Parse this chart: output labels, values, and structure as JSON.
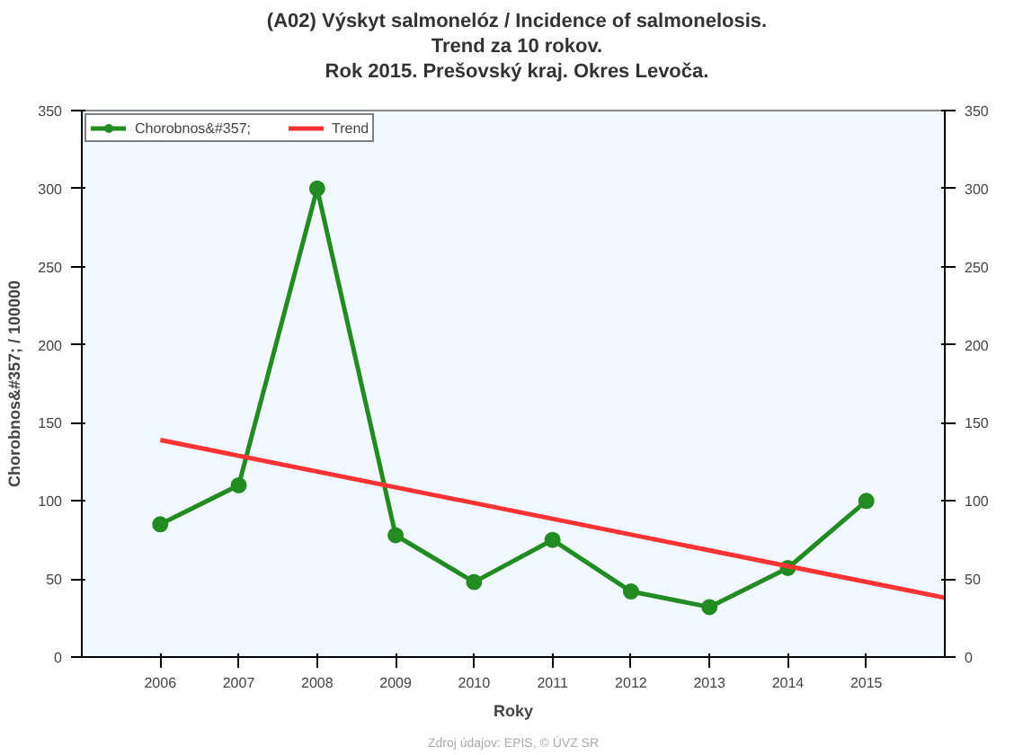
{
  "chart_data": {
    "type": "line",
    "title": "(A02) Výskyt salmonelóz / Incidence of salmonelosis.\nTrend za 10 rokov.\nRok 2015. Prešovský kraj. Okres Levoča.",
    "xlabel": "Roky",
    "ylabel": "Chorobnos&#357; / 100000",
    "x": [
      2006,
      2007,
      2008,
      2009,
      2010,
      2011,
      2012,
      2013,
      2014,
      2015
    ],
    "series": [
      {
        "name": "Chorobnos&#357;",
        "color": "#228b22",
        "marker": "circle",
        "values": [
          85,
          110,
          300,
          78,
          48,
          75,
          42,
          32,
          57,
          100
        ]
      },
      {
        "name": "Trend",
        "color": "#ff3333",
        "marker": "none",
        "x": [
          2006,
          2016
        ],
        "values": [
          139,
          38
        ]
      }
    ],
    "xlim": [
      2005,
      2016
    ],
    "xticks": [
      2006,
      2007,
      2008,
      2009,
      2010,
      2011,
      2012,
      2013,
      2014,
      2015
    ],
    "ylim": [
      0,
      350
    ],
    "yticks": [
      0,
      50,
      100,
      150,
      200,
      250,
      300,
      350
    ],
    "y2lim": [
      0,
      350
    ],
    "y2ticks": [
      0,
      50,
      100,
      150,
      200,
      250,
      300,
      350
    ],
    "grid": false,
    "legend": "top left",
    "annotations": [
      "Zdroj údajov: EPIS, © ÚVZ SR"
    ]
  }
}
